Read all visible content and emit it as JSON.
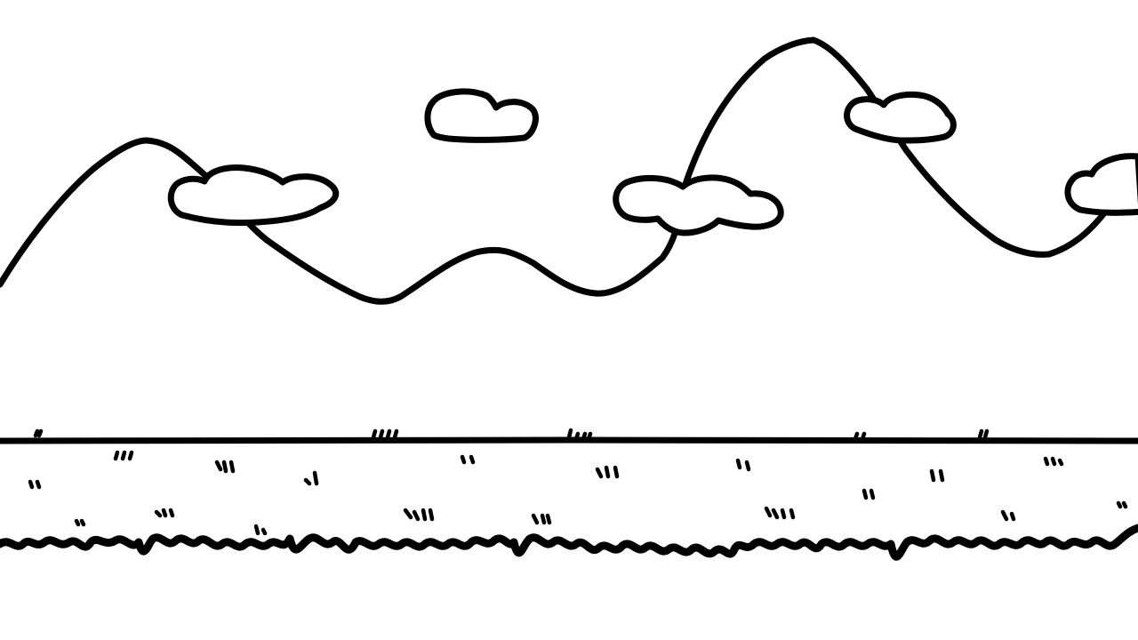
{
  "scene": {
    "background_color": "#ffffff",
    "ink_color": "#000000",
    "style": "hand-drawn line art"
  }
}
